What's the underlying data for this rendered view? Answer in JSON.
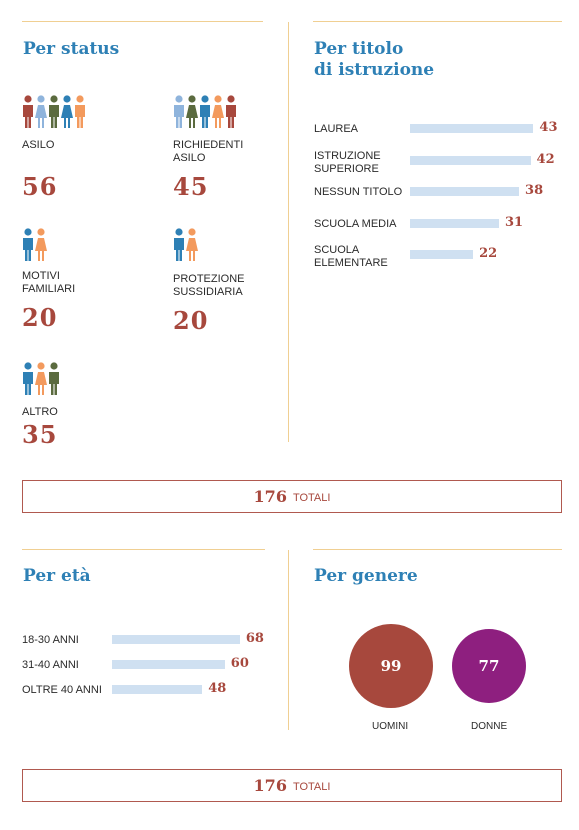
{
  "status": {
    "title": "Per status",
    "items": [
      {
        "label": "ASILO",
        "value": "56",
        "figures": [
          "#a7483d",
          "#8fb4dc",
          "#5b6b3f",
          "#2e80b5",
          "#f39a5d"
        ]
      },
      {
        "label": "RICHIEDENTI\nASILO",
        "value": "45",
        "figures": [
          "#8fb4dc",
          "#5b6b3f",
          "#2e80b5",
          "#f39a5d",
          "#a7483d"
        ]
      },
      {
        "label": "MOTIVI\nFAMILIARI",
        "value": "20",
        "figures": [
          "#2e80b5",
          "#f39a5d"
        ]
      },
      {
        "label": "PROTEZIONE\nSUSSIDIARIA",
        "value": "20",
        "figures": [
          "#2e80b5",
          "#f39a5d"
        ]
      },
      {
        "label": "ALTRO",
        "value": "35",
        "figures": [
          "#2e80b5",
          "#f39a5d",
          "#5b6b3f"
        ]
      }
    ]
  },
  "education": {
    "title": "Per titolo\ndi istruzione"
  },
  "age": {
    "title": "Per età"
  },
  "gender": {
    "title": "Per genere",
    "men_label": "UOMINI",
    "women_label": "DONNE"
  },
  "totals": {
    "top_value": "176",
    "top_label": "TOTALI",
    "bottom_value": "176",
    "bottom_label": "TOTALI"
  },
  "colors": {
    "title_blue": "#2e80b5",
    "value_red": "#a7483d",
    "bar_blue": "#cfe0f1",
    "men_circle": "#a7483d",
    "women_circle": "#8e1f7f",
    "rule_gold": "#f0cf92"
  },
  "chart_data": [
    {
      "type": "bar",
      "orientation": "horizontal",
      "title": "Per titolo di istruzione",
      "categories": [
        "LAUREA",
        "ISTRUZIONE\nSUPERIORE",
        "NESSUN TITOLO",
        "SCUOLA MEDIA",
        "SCUOLA\nELEMENTARE"
      ],
      "values": [
        43,
        42,
        38,
        31,
        22
      ]
    },
    {
      "type": "bar",
      "orientation": "horizontal",
      "title": "Per età",
      "categories": [
        "18-30 ANNI",
        "31-40 ANNI",
        "OLTRE 40 ANNI"
      ],
      "values": [
        68,
        60,
        48
      ]
    },
    {
      "type": "bubble",
      "title": "Per genere",
      "categories": [
        "UOMINI",
        "DONNE"
      ],
      "values": [
        99,
        77
      ]
    }
  ]
}
